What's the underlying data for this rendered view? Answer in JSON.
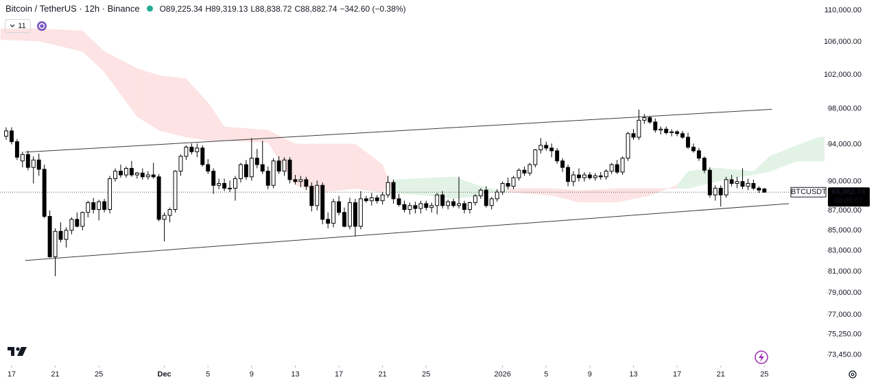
{
  "chart_data": {
    "type": "candlestick",
    "title": "Bitcoin / TetherUS · 12h · Binance",
    "ohlc_header": [
      "O89,225.34",
      "H89,319.13",
      "L88,838.72",
      "C88,882.74"
    ],
    "change_label": "−342.60 (−0.38%)",
    "indicator_count": 11,
    "symbol": "BTCUSDT",
    "last_price": {
      "value": 88882.74,
      "label": "88,882.74"
    },
    "countdown": "08:05:07",
    "log_scale": true,
    "up_color": "#ffffff",
    "down_color": "#000000",
    "outline_color": "#000000",
    "cloud_colors": {
      "bull": "#e2f3e6",
      "bear": "#fde3e3"
    },
    "xlim": [
      -1.13,
      150.4
    ],
    "ylim": [
      72550,
      111330
    ],
    "xticks": [
      {
        "value": 1,
        "label": "17"
      },
      {
        "value": 9,
        "label": "21"
      },
      {
        "value": 17,
        "label": "25"
      },
      {
        "value": 29,
        "label": "Dec"
      },
      {
        "value": 37,
        "label": "5"
      },
      {
        "value": 45,
        "label": "9"
      },
      {
        "value": 53,
        "label": "13"
      },
      {
        "value": 61,
        "label": "17"
      },
      {
        "value": 69,
        "label": "21"
      },
      {
        "value": 77,
        "label": "25"
      },
      {
        "value": 91,
        "label": "2026"
      },
      {
        "value": 99,
        "label": "5"
      },
      {
        "value": 107,
        "label": "9"
      },
      {
        "value": 115,
        "label": "13"
      },
      {
        "value": 123,
        "label": "17"
      },
      {
        "value": 131,
        "label": "21"
      },
      {
        "value": 139,
        "label": "25"
      }
    ],
    "yticks": [
      {
        "value": 110000,
        "label": "110,000.00"
      },
      {
        "value": 106000,
        "label": "106,000.00"
      },
      {
        "value": 102000,
        "label": "102,000.00"
      },
      {
        "value": 98000,
        "label": "98,000.00"
      },
      {
        "value": 94000,
        "label": "94,000.00"
      },
      {
        "value": 90000,
        "label": "90,000.00"
      },
      {
        "value": 87000,
        "label": "87,000.00"
      },
      {
        "value": 85000,
        "label": "85,000.00"
      },
      {
        "value": 83000,
        "label": "83,000.00"
      },
      {
        "value": 81000,
        "label": "81,000.00"
      },
      {
        "value": 79000,
        "label": "79,000.00"
      },
      {
        "value": 77000,
        "label": "77,000.00"
      },
      {
        "value": 75250,
        "label": "75,250.00"
      },
      {
        "value": 73450,
        "label": "73,450.00"
      }
    ],
    "trend_lines": [
      {
        "x": [
          3.5,
          140.4
        ],
        "y": [
          93150,
          97950
        ]
      },
      {
        "x": [
          3.5,
          143.5
        ],
        "y": [
          82050,
          87700
        ]
      }
    ],
    "cloud": {
      "x": [
        -1,
        6,
        14,
        18,
        24,
        28,
        33,
        37,
        40,
        48,
        53,
        58,
        64,
        69,
        71,
        77,
        82,
        87,
        92,
        100,
        105,
        112,
        118,
        123,
        125,
        130,
        137,
        140,
        145,
        149,
        150
      ],
      "a": [
        106270,
        106100,
        104820,
        102330,
        97120,
        95580,
        94810,
        94430,
        94430,
        94210,
        89630,
        88900,
        89270,
        88900,
        90200,
        90350,
        90500,
        89490,
        88900,
        88550,
        87850,
        87850,
        88550,
        89630,
        91080,
        91450,
        91080,
        92710,
        93900,
        94810,
        94810
      ],
      "b": [
        107640,
        107640,
        107380,
        104820,
        102740,
        101920,
        101510,
        98690,
        95960,
        95580,
        94050,
        94050,
        94050,
        91810,
        88770,
        88550,
        88200,
        88550,
        89270,
        89270,
        89060,
        89270,
        89270,
        89270,
        89270,
        89990,
        90720,
        91080,
        92180,
        92180,
        92180
      ]
    },
    "ohlc": [
      [
        94900,
        95900,
        94500,
        95500
      ],
      [
        95500,
        95900,
        94000,
        94300
      ],
      [
        94300,
        94600,
        92300,
        92600
      ],
      [
        92200,
        93200,
        91500,
        92900
      ],
      [
        92900,
        93300,
        91200,
        91500
      ],
      [
        91500,
        92700,
        89800,
        92300
      ],
      [
        92300,
        93000,
        90600,
        91300
      ],
      [
        91300,
        91800,
        86200,
        86400
      ],
      [
        86400,
        87000,
        82300,
        82400
      ],
      [
        82400,
        85200,
        80550,
        84900
      ],
      [
        84900,
        85800,
        83800,
        84100
      ],
      [
        84100,
        85300,
        83300,
        85000
      ],
      [
        85000,
        86300,
        84600,
        86100
      ],
      [
        86100,
        86800,
        85300,
        85400
      ],
      [
        85400,
        86900,
        85000,
        86800
      ],
      [
        86800,
        88000,
        86300,
        87800
      ],
      [
        87800,
        88300,
        86700,
        87100
      ],
      [
        87100,
        88100,
        86000,
        87900
      ],
      [
        87900,
        88200,
        86800,
        87100
      ],
      [
        87100,
        90600,
        86700,
        90300
      ],
      [
        90300,
        91400,
        90000,
        91100
      ],
      [
        91100,
        91800,
        90400,
        90700
      ],
      [
        90700,
        91600,
        90400,
        91400
      ],
      [
        91400,
        92200,
        90500,
        90700
      ],
      [
        90700,
        91000,
        90300,
        90900
      ],
      [
        90900,
        91400,
        90200,
        90500
      ],
      [
        90500,
        91100,
        90200,
        90700
      ],
      [
        90700,
        92000,
        90300,
        90500
      ],
      [
        90500,
        90800,
        85900,
        86100
      ],
      [
        86100,
        86800,
        83900,
        86500
      ],
      [
        86500,
        87300,
        85800,
        87100
      ],
      [
        87100,
        91200,
        86800,
        91100
      ],
      [
        91100,
        92900,
        90600,
        92700
      ],
      [
        92700,
        93900,
        92300,
        93700
      ],
      [
        93700,
        94100,
        92900,
        93200
      ],
      [
        93200,
        94100,
        92600,
        93600
      ],
      [
        93600,
        93900,
        91600,
        91800
      ],
      [
        91800,
        92400,
        90800,
        91100
      ],
      [
        91100,
        91400,
        88700,
        89600
      ],
      [
        89600,
        90300,
        89200,
        89800
      ],
      [
        89800,
        90300,
        89000,
        89300
      ],
      [
        89300,
        90100,
        88900,
        89300
      ],
      [
        89300,
        90600,
        88000,
        90300
      ],
      [
        90300,
        92000,
        89900,
        91800
      ],
      [
        91800,
        92300,
        90200,
        90500
      ],
      [
        90500,
        94700,
        90100,
        92500
      ],
      [
        92500,
        93500,
        91400,
        91800
      ],
      [
        91800,
        94400,
        90800,
        91100
      ],
      [
        91100,
        91600,
        89200,
        89600
      ],
      [
        89600,
        92500,
        89300,
        92200
      ],
      [
        92200,
        92700,
        90800,
        91100
      ],
      [
        91100,
        92600,
        90600,
        92300
      ],
      [
        92300,
        92600,
        89800,
        90200
      ],
      [
        90200,
        90700,
        89700,
        90000
      ],
      [
        90000,
        90600,
        89400,
        90200
      ],
      [
        90200,
        90500,
        89100,
        89500
      ],
      [
        89500,
        89900,
        86900,
        87500
      ],
      [
        87500,
        90100,
        87000,
        89600
      ],
      [
        89600,
        89900,
        85600,
        86100
      ],
      [
        86100,
        86800,
        85200,
        85700
      ],
      [
        85700,
        88200,
        85300,
        87900
      ],
      [
        87900,
        88500,
        86500,
        86800
      ],
      [
        86800,
        87300,
        85300,
        85400
      ],
      [
        85400,
        88300,
        85100,
        87800
      ],
      [
        87800,
        88200,
        84400,
        85400
      ],
      [
        85400,
        89000,
        85100,
        88200
      ],
      [
        88200,
        88500,
        87800,
        88000
      ],
      [
        88000,
        88800,
        87500,
        88300
      ],
      [
        88300,
        88600,
        87700,
        88000
      ],
      [
        88000,
        88900,
        87600,
        88600
      ],
      [
        88600,
        90600,
        88300,
        89900
      ],
      [
        89900,
        90200,
        87700,
        88200
      ],
      [
        88200,
        88700,
        87400,
        87600
      ],
      [
        87600,
        88000,
        86800,
        87100
      ],
      [
        87100,
        87800,
        86600,
        87500
      ],
      [
        87500,
        87900,
        86700,
        87200
      ],
      [
        87200,
        88000,
        86700,
        87700
      ],
      [
        87700,
        88000,
        87000,
        87300
      ],
      [
        87300,
        87800,
        86800,
        87500
      ],
      [
        87500,
        88800,
        86600,
        88600
      ],
      [
        88600,
        89000,
        87200,
        87500
      ],
      [
        87500,
        88100,
        87100,
        87900
      ],
      [
        87900,
        88200,
        87300,
        87500
      ],
      [
        87500,
        90500,
        87200,
        87700
      ],
      [
        87700,
        88000,
        86700,
        87100
      ],
      [
        87100,
        87900,
        86700,
        87800
      ],
      [
        87800,
        88700,
        87500,
        88500
      ],
      [
        88500,
        89300,
        88200,
        89100
      ],
      [
        89100,
        89500,
        87300,
        87500
      ],
      [
        87500,
        88400,
        87100,
        88200
      ],
      [
        88200,
        89200,
        87900,
        88900
      ],
      [
        88900,
        90000,
        88600,
        89800
      ],
      [
        89800,
        90400,
        89200,
        89500
      ],
      [
        89500,
        90600,
        89200,
        90400
      ],
      [
        90400,
        91400,
        90100,
        91200
      ],
      [
        91200,
        91600,
        90600,
        90900
      ],
      [
        90900,
        92000,
        90600,
        91800
      ],
      [
        91800,
        93500,
        91500,
        93400
      ],
      [
        93400,
        94700,
        93000,
        93900
      ],
      [
        93900,
        94300,
        93300,
        93600
      ],
      [
        93600,
        94100,
        92600,
        93300
      ],
      [
        93300,
        93600,
        91900,
        92200
      ],
      [
        92200,
        92500,
        91000,
        91500
      ],
      [
        91500,
        91800,
        89500,
        90000
      ],
      [
        90000,
        91100,
        89500,
        90700
      ],
      [
        90700,
        91400,
        90000,
        90400
      ],
      [
        90400,
        91000,
        90000,
        90700
      ],
      [
        90700,
        91000,
        90200,
        90400
      ],
      [
        90400,
        90900,
        90100,
        90600
      ],
      [
        90600,
        91000,
        90200,
        90500
      ],
      [
        90500,
        91300,
        90200,
        91100
      ],
      [
        91100,
        92000,
        90800,
        91800
      ],
      [
        91800,
        92300,
        90800,
        91000
      ],
      [
        91000,
        92700,
        90700,
        92500
      ],
      [
        92500,
        95400,
        92200,
        95200
      ],
      [
        95200,
        95700,
        94500,
        94800
      ],
      [
        94800,
        97900,
        94500,
        96700
      ],
      [
        96700,
        97400,
        96300,
        97000
      ],
      [
        97000,
        97200,
        96300,
        96500
      ],
      [
        96500,
        96900,
        95300,
        95600
      ],
      [
        95600,
        96000,
        95100,
        95700
      ],
      [
        95700,
        96000,
        95100,
        95300
      ],
      [
        95300,
        95700,
        94900,
        95400
      ],
      [
        95400,
        95600,
        94900,
        95200
      ],
      [
        95200,
        95500,
        94600,
        94800
      ],
      [
        94800,
        95300,
        93500,
        93700
      ],
      [
        93700,
        94100,
        93100,
        93300
      ],
      [
        93300,
        93600,
        92200,
        92500
      ],
      [
        92500,
        92700,
        90900,
        91200
      ],
      [
        91200,
        91500,
        88300,
        88600
      ],
      [
        88600,
        89600,
        88000,
        89300
      ],
      [
        89300,
        89600,
        87400,
        88600
      ],
      [
        88600,
        90500,
        88300,
        90200
      ],
      [
        90200,
        90700,
        89500,
        89800
      ],
      [
        89800,
        90500,
        89300,
        90000
      ],
      [
        90000,
        91400,
        89200,
        89500
      ],
      [
        89500,
        90300,
        89100,
        89800
      ],
      [
        89800,
        90200,
        89100,
        89300
      ],
      [
        89300,
        89500,
        88800,
        89100
      ],
      [
        89225.34,
        89319.13,
        88838.72,
        88882.74
      ]
    ]
  }
}
